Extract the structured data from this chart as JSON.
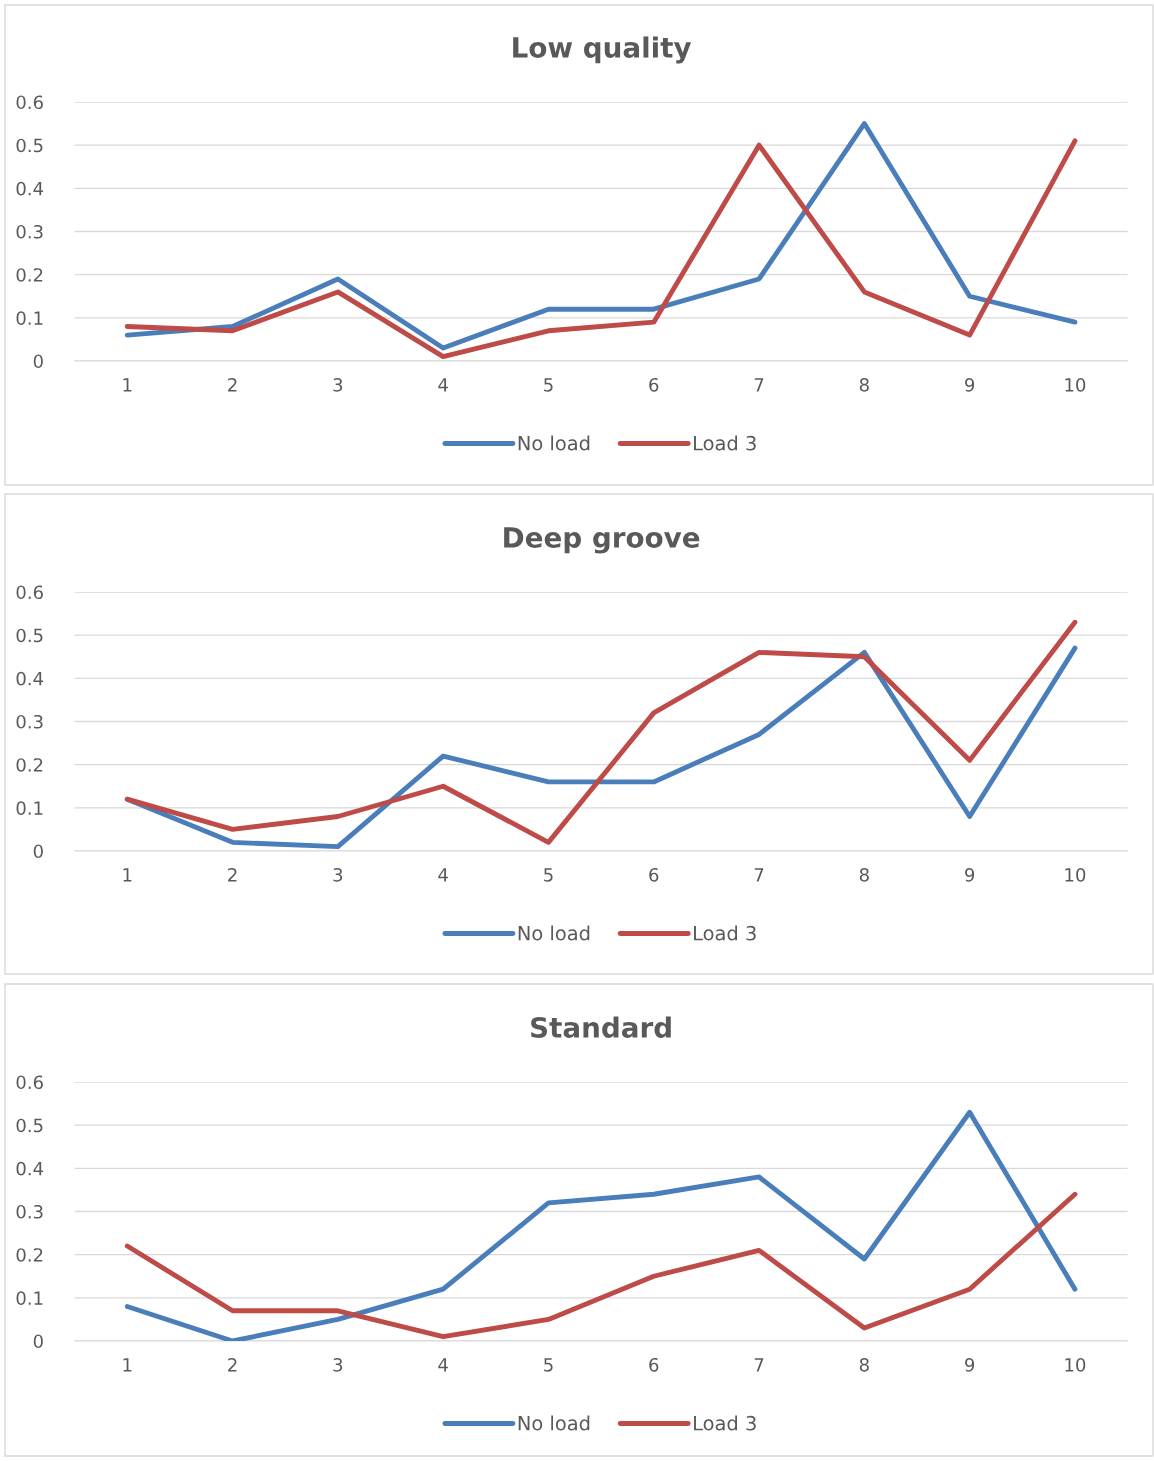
{
  "chart_data": [
    {
      "type": "line",
      "title": "Low quality",
      "categories": [
        "1",
        "2",
        "3",
        "4",
        "5",
        "6",
        "7",
        "8",
        "9",
        "10"
      ],
      "ylim": [
        0,
        0.6
      ],
      "yticks": [
        0,
        0.1,
        0.2,
        0.3,
        0.4,
        0.5,
        0.6
      ],
      "grid": "y",
      "legend": "bottom",
      "series": [
        {
          "name": "No load",
          "color": "#4a7ebb",
          "values": [
            0.06,
            0.08,
            0.19,
            0.03,
            0.12,
            0.12,
            0.19,
            0.55,
            0.15,
            0.09
          ]
        },
        {
          "name": "Load 3",
          "color": "#be4b48",
          "values": [
            0.08,
            0.07,
            0.16,
            0.01,
            0.07,
            0.09,
            0.5,
            0.16,
            0.06,
            0.51
          ]
        }
      ]
    },
    {
      "type": "line",
      "title": "Deep groove",
      "categories": [
        "1",
        "2",
        "3",
        "4",
        "5",
        "6",
        "7",
        "8",
        "9",
        "10"
      ],
      "ylim": [
        0,
        0.6
      ],
      "yticks": [
        0,
        0.1,
        0.2,
        0.3,
        0.4,
        0.5,
        0.6
      ],
      "grid": "y",
      "legend": "bottom",
      "series": [
        {
          "name": "No load",
          "color": "#4a7ebb",
          "values": [
            0.12,
            0.02,
            0.01,
            0.22,
            0.16,
            0.16,
            0.27,
            0.46,
            0.08,
            0.47
          ]
        },
        {
          "name": "Load 3",
          "color": "#be4b48",
          "values": [
            0.12,
            0.05,
            0.08,
            0.15,
            0.02,
            0.32,
            0.46,
            0.45,
            0.21,
            0.53
          ]
        }
      ]
    },
    {
      "type": "line",
      "title": "Standard",
      "categories": [
        "1",
        "2",
        "3",
        "4",
        "5",
        "6",
        "7",
        "8",
        "9",
        "10"
      ],
      "ylim": [
        0,
        0.6
      ],
      "yticks": [
        0,
        0.1,
        0.2,
        0.3,
        0.4,
        0.5,
        0.6
      ],
      "grid": "y",
      "legend": "bottom",
      "series": [
        {
          "name": "No load",
          "color": "#4a7ebb",
          "values": [
            0.08,
            0.0,
            0.05,
            0.12,
            0.32,
            0.34,
            0.38,
            0.19,
            0.53,
            0.12
          ]
        },
        {
          "name": "Load 3",
          "color": "#be4b48",
          "values": [
            0.22,
            0.07,
            0.07,
            0.01,
            0.05,
            0.15,
            0.21,
            0.03,
            0.12,
            0.34
          ]
        }
      ]
    }
  ]
}
